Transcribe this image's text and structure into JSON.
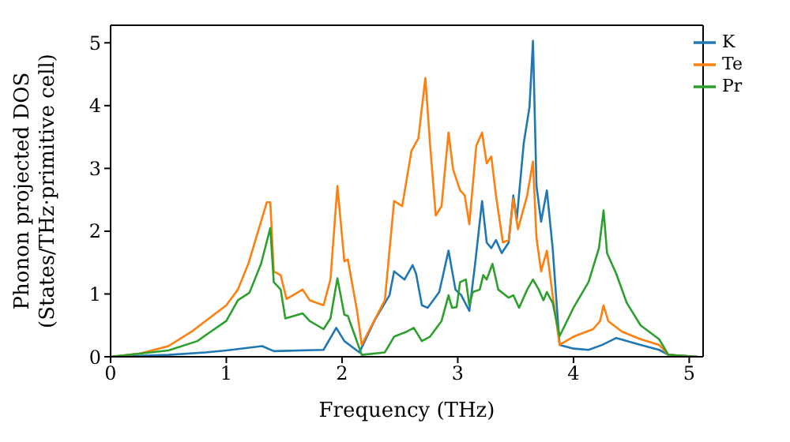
{
  "chart_data": {
    "type": "line",
    "xlabel": "Frequency (THz)",
    "ylabel": "Phonon projected DOS\n(States/THz·primitive cell)",
    "xlim": [
      0,
      5.12
    ],
    "ylim": [
      0,
      5.28
    ],
    "xticks": [
      0,
      1,
      2,
      3,
      4,
      5
    ],
    "yticks": [
      0,
      1,
      2,
      3,
      4,
      5
    ],
    "legend": "top right",
    "marker": "none",
    "line_style": "solid",
    "series": [
      {
        "name": "K",
        "color": "#1f77b4",
        "x": [
          0,
          0.5,
          0.82,
          1.0,
          1.31,
          1.41,
          1.84,
          1.95,
          2.02,
          2.15,
          2.29,
          2.41,
          2.45,
          2.54,
          2.61,
          2.64,
          2.69,
          2.74,
          2.84,
          2.92,
          2.98,
          3.03,
          3.1,
          3.15,
          3.21,
          3.25,
          3.29,
          3.33,
          3.38,
          3.44,
          3.48,
          3.51,
          3.57,
          3.62,
          3.65,
          3.68,
          3.72,
          3.77,
          3.82,
          3.88,
          4.0,
          4.13,
          4.25,
          4.37,
          4.58,
          4.74,
          4.82,
          5.07
        ],
        "values": [
          0,
          0.03,
          0.07,
          0.1,
          0.17,
          0.09,
          0.11,
          0.46,
          0.25,
          0.07,
          0.61,
          0.98,
          1.36,
          1.23,
          1.46,
          1.32,
          0.82,
          0.78,
          1.03,
          1.69,
          1.07,
          0.98,
          0.73,
          1.48,
          2.48,
          1.82,
          1.73,
          1.86,
          1.65,
          1.82,
          2.57,
          2.19,
          3.4,
          3.98,
          5.03,
          2.73,
          2.15,
          2.65,
          1.73,
          0.19,
          0.13,
          0.11,
          0.19,
          0.3,
          0.19,
          0.11,
          0.03,
          0
        ]
      },
      {
        "name": "Te",
        "color": "#ff7f0e",
        "x": [
          0,
          0.25,
          0.5,
          0.7,
          0.85,
          1.0,
          1.1,
          1.19,
          1.35,
          1.38,
          1.41,
          1.47,
          1.52,
          1.66,
          1.72,
          1.84,
          1.9,
          1.96,
          2.02,
          2.05,
          2.13,
          2.17,
          2.37,
          2.45,
          2.52,
          2.6,
          2.66,
          2.72,
          2.76,
          2.81,
          2.86,
          2.92,
          2.96,
          3.02,
          3.06,
          3.1,
          3.16,
          3.21,
          3.25,
          3.29,
          3.33,
          3.39,
          3.44,
          3.48,
          3.52,
          3.6,
          3.65,
          3.68,
          3.72,
          3.77,
          3.82,
          3.88,
          4.0,
          4.17,
          4.23,
          4.26,
          4.3,
          4.42,
          4.58,
          4.74,
          4.82,
          5.07
        ],
        "values": [
          0,
          0.05,
          0.17,
          0.4,
          0.61,
          0.82,
          1.07,
          1.48,
          2.46,
          2.46,
          1.36,
          1.3,
          0.92,
          1.07,
          0.9,
          0.82,
          1.23,
          2.72,
          1.52,
          1.55,
          0.73,
          0.19,
          0.9,
          2.48,
          2.4,
          3.28,
          3.48,
          4.44,
          3.4,
          2.25,
          2.4,
          3.57,
          2.98,
          2.65,
          2.57,
          2.11,
          3.36,
          3.57,
          3.08,
          3.19,
          2.57,
          1.82,
          1.86,
          2.52,
          2.03,
          2.57,
          3.11,
          1.9,
          1.36,
          1.69,
          0.98,
          0.19,
          0.32,
          0.44,
          0.57,
          0.82,
          0.57,
          0.4,
          0.28,
          0.19,
          0.03,
          0
        ]
      },
      {
        "name": "Pr",
        "color": "#2ca02c",
        "x": [
          0,
          0.5,
          0.75,
          0.85,
          1.0,
          1.1,
          1.2,
          1.3,
          1.38,
          1.41,
          1.47,
          1.51,
          1.66,
          1.72,
          1.84,
          1.9,
          1.96,
          2.02,
          2.05,
          2.17,
          2.37,
          2.45,
          2.56,
          2.62,
          2.69,
          2.76,
          2.86,
          2.92,
          2.95,
          2.99,
          3.02,
          3.07,
          3.1,
          3.13,
          3.19,
          3.22,
          3.25,
          3.3,
          3.35,
          3.44,
          3.48,
          3.53,
          3.6,
          3.65,
          3.7,
          3.74,
          3.77,
          3.82,
          3.88,
          4.0,
          4.13,
          4.22,
          4.26,
          4.29,
          4.37,
          4.46,
          4.58,
          4.74,
          4.82,
          5.07
        ],
        "values": [
          0,
          0.1,
          0.25,
          0.38,
          0.57,
          0.9,
          1.02,
          1.48,
          2.05,
          1.19,
          1.07,
          0.61,
          0.69,
          0.57,
          0.44,
          0.61,
          1.25,
          0.67,
          0.65,
          0.03,
          0.07,
          0.32,
          0.4,
          0.46,
          0.25,
          0.32,
          0.57,
          0.98,
          0.78,
          0.79,
          1.19,
          1.23,
          0.82,
          1.03,
          1.07,
          1.3,
          1.23,
          1.48,
          1.07,
          0.94,
          0.98,
          0.78,
          1.07,
          1.23,
          1.07,
          0.9,
          1.03,
          0.86,
          0.33,
          0.78,
          1.19,
          1.73,
          2.33,
          1.65,
          1.32,
          0.86,
          0.5,
          0.28,
          0.03,
          0
        ]
      }
    ]
  }
}
